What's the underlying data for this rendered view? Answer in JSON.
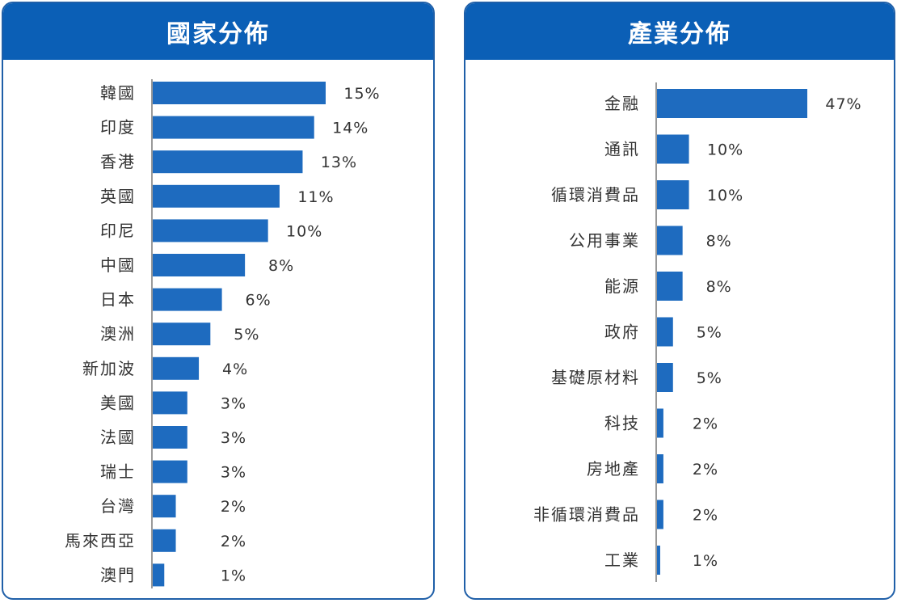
{
  "colors": {
    "header": "#0b5fb6",
    "bar": "#1e6bbf",
    "axis": "#999999",
    "border": "#1f5fa8"
  },
  "chart_data": [
    {
      "type": "bar",
      "orientation": "horizontal",
      "title": "國家分佈",
      "categories": [
        "韓國",
        "印度",
        "香港",
        "英國",
        "印尼",
        "中國",
        "日本",
        "澳洲",
        "新加波",
        "美國",
        "法國",
        "瑞士",
        "台灣",
        "馬來西亞",
        "澳門"
      ],
      "values": [
        15,
        14,
        13,
        11,
        10,
        8,
        6,
        5,
        4,
        3,
        3,
        3,
        2,
        2,
        1
      ],
      "value_labels": [
        "15%",
        "14%",
        "13%",
        "11%",
        "10%",
        "8%",
        "6%",
        "5%",
        "4%",
        "3%",
        "3%",
        "3%",
        "2%",
        "2%",
        "1%"
      ],
      "grid": false,
      "legend": "none"
    },
    {
      "type": "bar",
      "orientation": "horizontal",
      "title": "產業分佈",
      "categories": [
        "金融",
        "通訊",
        "循環消費品",
        "公用事業",
        "能源",
        "政府",
        "基礎原材料",
        "科技",
        "房地產",
        "非循環消費品",
        "工業"
      ],
      "values": [
        47,
        10,
        10,
        8,
        8,
        5,
        5,
        2,
        2,
        2,
        1
      ],
      "value_labels": [
        "47%",
        "10%",
        "10%",
        "8%",
        "8%",
        "5%",
        "5%",
        "2%",
        "2%",
        "2%",
        "1%"
      ],
      "grid": false,
      "legend": "none"
    }
  ]
}
